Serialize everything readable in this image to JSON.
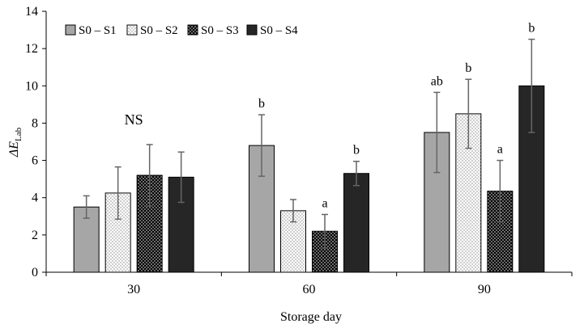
{
  "chart_data": {
    "type": "bar",
    "title": "",
    "xlabel": "Storage day",
    "ylabel_main": "ΔE",
    "ylabel_sub": "Lab",
    "categories": [
      "30",
      "60",
      "90"
    ],
    "ylim": [
      0,
      14
    ],
    "yticks": [
      0,
      2,
      4,
      6,
      8,
      10,
      12,
      14
    ],
    "grid": false,
    "legend_position": "top-left",
    "series": [
      {
        "name": "S0 – S1",
        "pattern": "solid-gray",
        "color": "#a6a6a6",
        "values": [
          3.5,
          6.8,
          7.5
        ],
        "errors": [
          0.6,
          1.65,
          2.15
        ],
        "labels": [
          "",
          "b",
          "ab"
        ]
      },
      {
        "name": "S0 – S2",
        "pattern": "light-dots",
        "color": "#ffffff",
        "values": [
          4.25,
          3.3,
          8.5
        ],
        "errors": [
          1.4,
          0.6,
          1.85
        ],
        "labels": [
          "",
          "",
          "b"
        ]
      },
      {
        "name": "S0 – S3",
        "pattern": "dark-dots",
        "color": "#000000",
        "values": [
          5.2,
          2.2,
          4.35
        ],
        "errors": [
          1.65,
          0.9,
          1.65
        ],
        "labels": [
          "",
          "a",
          "a"
        ]
      },
      {
        "name": "S0 – S4",
        "pattern": "solid-dark",
        "color": "#262626",
        "values": [
          5.1,
          5.3,
          10.0
        ],
        "errors": [
          1.35,
          0.65,
          2.5
        ],
        "labels": [
          "",
          "b",
          "b"
        ]
      }
    ],
    "annotations": [
      {
        "text": "NS",
        "category": "30",
        "y": 8.2
      }
    ]
  }
}
